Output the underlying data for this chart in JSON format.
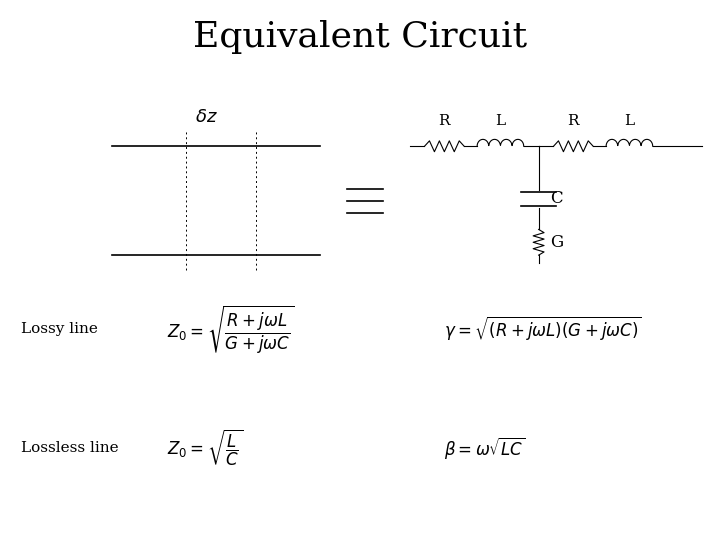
{
  "title": "Equivalent Circuit",
  "title_fontsize": 26,
  "background_color": "#ffffff",
  "text_color": "#000000",
  "line_color": "#000000",
  "delta_z_label": "$\\delta z$",
  "R_label": "R",
  "L_label": "L",
  "C_label": "C",
  "G_label": "G",
  "lossy_label": "Lossy line",
  "lossless_label": "Lossless line",
  "lossy_zo": "$Z_0 = \\sqrt{\\dfrac{R + j\\omega L}{G + j\\omega C}}$",
  "lossy_gamma": "$\\gamma = \\sqrt{(R + j\\omega L)(G + j\\omega C)}$",
  "lossless_zo": "$Z_0 = \\sqrt{\\dfrac{L}{C}}$",
  "lossless_beta": "$\\beta = \\omega\\sqrt{LC}$",
  "fig_width": 7.2,
  "fig_height": 5.4,
  "dpi": 100
}
